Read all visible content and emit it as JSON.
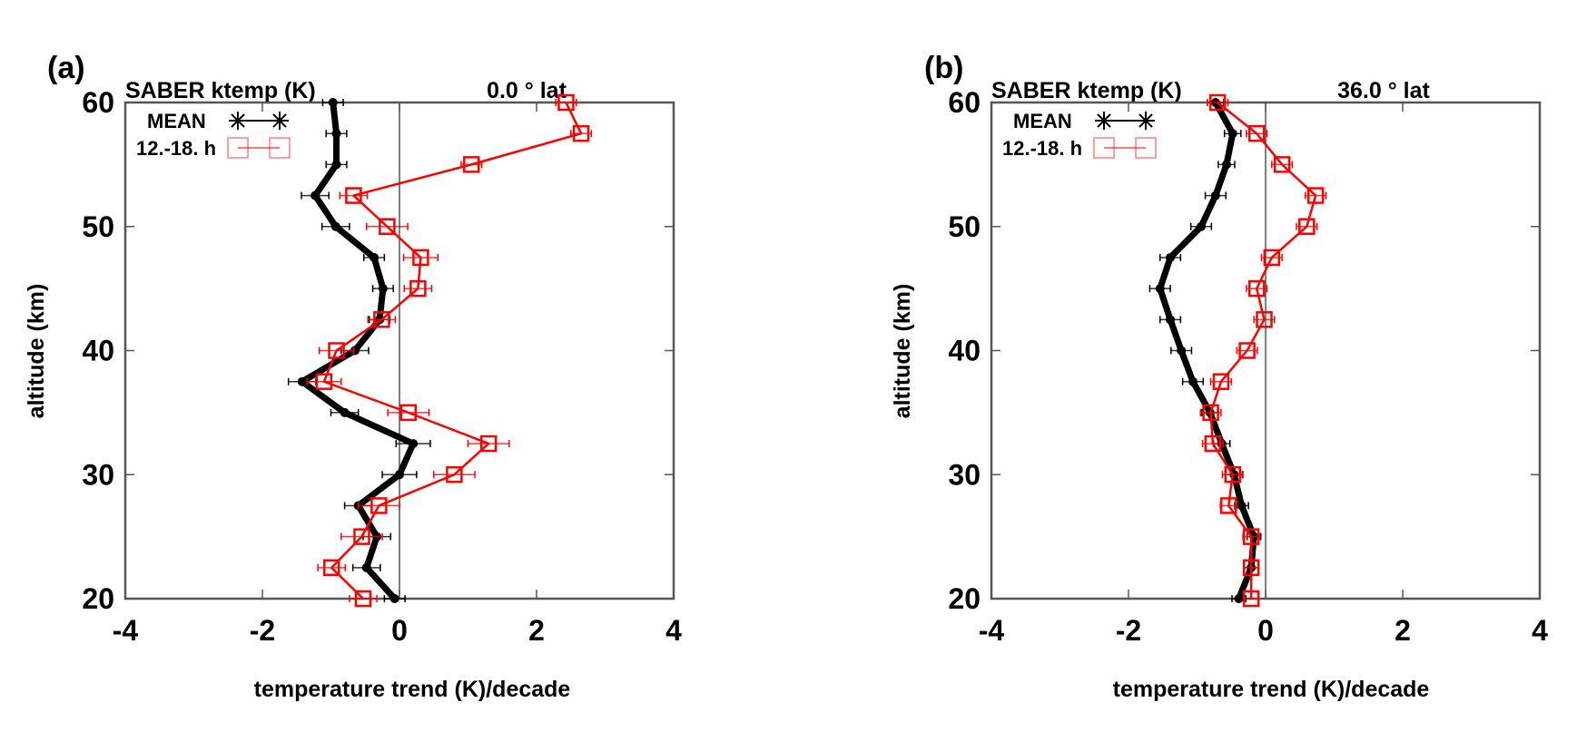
{
  "colors": {
    "mean": "#000000",
    "afternoon": "#ff0000",
    "axis": "#555555"
  },
  "chart_data": [
    {
      "type": "line",
      "panel_label": "(a)",
      "title_left": "SABER ktemp (K)",
      "title_right": "0.0 ° lat",
      "xlabel": "temperature trend (K)/decade",
      "ylabel": "altitude (km)",
      "xlim": [
        -4,
        4
      ],
      "ylim": [
        20,
        60
      ],
      "xticks": [
        "-4",
        "-2",
        "0",
        "2",
        "4"
      ],
      "yticks": [
        "20",
        "30",
        "40",
        "50",
        "60"
      ],
      "legend": {
        "placement": "top-left",
        "entries": [
          "MEAN",
          "12.-18. h"
        ]
      },
      "y": [
        20,
        22.5,
        25,
        27.5,
        30,
        32.5,
        35,
        37.5,
        40,
        42.5,
        45,
        47.5,
        50,
        52.5,
        55,
        57.5,
        60
      ],
      "series": [
        {
          "name": "MEAN",
          "marker": "asterisk",
          "values": [
            -0.07,
            -0.48,
            -0.33,
            -0.6,
            0.0,
            0.2,
            -0.8,
            -1.42,
            -0.65,
            -0.29,
            -0.24,
            -0.37,
            -0.93,
            -1.23,
            -0.92,
            -0.92,
            -0.97
          ],
          "errors": [
            0.15,
            0.2,
            0.2,
            0.2,
            0.25,
            0.25,
            0.2,
            0.2,
            0.2,
            0.15,
            0.15,
            0.15,
            0.2,
            0.2,
            0.15,
            0.15,
            0.15
          ]
        },
        {
          "name": "12.-18. h",
          "marker": "square",
          "values": [
            -0.53,
            -0.99,
            -0.55,
            -0.3,
            0.8,
            1.3,
            0.13,
            -1.1,
            -0.92,
            -0.26,
            0.27,
            0.31,
            -0.18,
            -0.67,
            1.05,
            2.65,
            2.43
          ],
          "errors": [
            0.2,
            0.2,
            0.3,
            0.3,
            0.3,
            0.3,
            0.3,
            0.25,
            0.25,
            0.2,
            0.2,
            0.25,
            0.3,
            0.2,
            0.15,
            0.15,
            0.15
          ]
        }
      ]
    },
    {
      "type": "line",
      "panel_label": "(b)",
      "title_left": "SABER ktemp (K)",
      "title_right": "36.0 ° lat",
      "xlabel": "temperature trend (K)/decade",
      "ylabel": "altitude (km)",
      "xlim": [
        -4,
        4
      ],
      "ylim": [
        20,
        60
      ],
      "xticks": [
        "-4",
        "-2",
        "0",
        "2",
        "4"
      ],
      "yticks": [
        "20",
        "30",
        "40",
        "50",
        "60"
      ],
      "legend": {
        "placement": "top-left",
        "entries": [
          "MEAN",
          "12.-18. h"
        ]
      },
      "y": [
        20,
        22.5,
        25,
        27.5,
        30,
        32.5,
        35,
        37.5,
        40,
        42.5,
        45,
        47.5,
        50,
        52.5,
        55,
        57.5,
        60
      ],
      "series": [
        {
          "name": "MEAN",
          "marker": "asterisk",
          "values": [
            -0.39,
            -0.21,
            -0.17,
            -0.35,
            -0.46,
            -0.64,
            -0.81,
            -1.06,
            -1.23,
            -1.39,
            -1.54,
            -1.39,
            -0.94,
            -0.73,
            -0.57,
            -0.48,
            -0.73
          ],
          "errors": [
            0.1,
            0.1,
            0.1,
            0.1,
            0.12,
            0.12,
            0.12,
            0.15,
            0.15,
            0.15,
            0.15,
            0.15,
            0.15,
            0.15,
            0.12,
            0.12,
            0.12
          ]
        },
        {
          "name": "12.-18. h",
          "marker": "square",
          "values": [
            -0.21,
            -0.21,
            -0.21,
            -0.54,
            -0.48,
            -0.77,
            -0.8,
            -0.65,
            -0.27,
            -0.02,
            -0.13,
            0.09,
            0.6,
            0.73,
            0.24,
            -0.13,
            -0.7
          ],
          "errors": [
            0.1,
            0.1,
            0.12,
            0.12,
            0.15,
            0.15,
            0.15,
            0.15,
            0.15,
            0.15,
            0.15,
            0.15,
            0.15,
            0.15,
            0.15,
            0.15,
            0.15
          ]
        }
      ]
    }
  ]
}
